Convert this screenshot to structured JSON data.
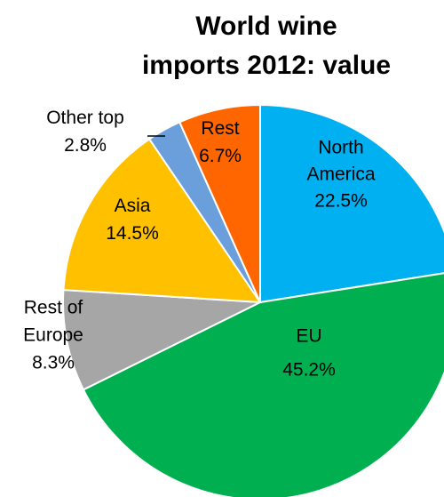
{
  "chart_data": {
    "type": "pie",
    "title_lines": [
      "World wine",
      "imports 2012: value"
    ],
    "unit": "%",
    "start": "12 o'clock",
    "direction": "clockwise",
    "slices": [
      {
        "label_lines": [
          "North",
          "America"
        ],
        "value": 22.5,
        "value_text": "22.5%",
        "color": "#00B0F0"
      },
      {
        "label_lines": [
          "EU"
        ],
        "value": 45.2,
        "value_text": "45.2%",
        "color": "#00B050"
      },
      {
        "label_lines": [
          "Rest of",
          "Europe"
        ],
        "value": 8.3,
        "value_text": "8.3%",
        "color": "#A6A6A6"
      },
      {
        "label_lines": [
          "Asia"
        ],
        "value": 14.5,
        "value_text": "14.5%",
        "color": "#FFC000"
      },
      {
        "label_lines": [
          "Other top"
        ],
        "value": 2.8,
        "value_text": "2.8%",
        "color": "#6A9FDB"
      },
      {
        "label_lines": [
          "Rest"
        ],
        "value": 6.7,
        "value_text": "6.7%",
        "color": "#FF6600"
      }
    ]
  }
}
